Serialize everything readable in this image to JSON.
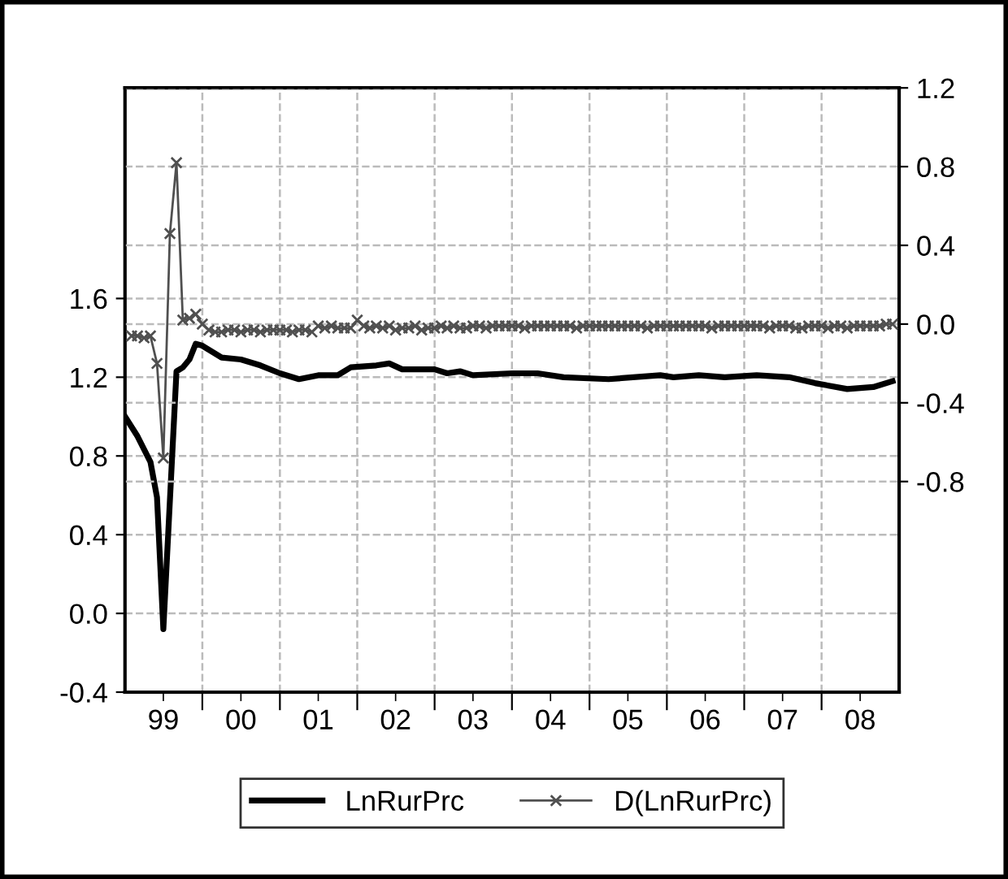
{
  "chart_data": {
    "type": "line",
    "xlim": [
      "1999-01",
      "2009-01"
    ],
    "xticks": [
      {
        "value": "2000-01",
        "label": null
      },
      {
        "value": "2001-01",
        "label": null
      },
      {
        "value": "2002-01",
        "label": null
      },
      {
        "value": "2003-01",
        "label": null
      },
      {
        "value": "2004-01",
        "label": null
      },
      {
        "value": "2005-01",
        "label": null
      },
      {
        "value": "2006-01",
        "label": null
      },
      {
        "value": "2007-01",
        "label": null
      },
      {
        "value": "2008-01",
        "label": null
      },
      {
        "value": "1999-07",
        "label": "99"
      },
      {
        "value": "2000-07",
        "label": "00"
      },
      {
        "value": "2001-07",
        "label": "01"
      },
      {
        "value": "2002-07",
        "label": "02"
      },
      {
        "value": "2003-07",
        "label": "03"
      },
      {
        "value": "2004-07",
        "label": "04"
      },
      {
        "value": "2005-07",
        "label": "05"
      },
      {
        "value": "2006-07",
        "label": "06"
      },
      {
        "value": "2007-07",
        "label": "07"
      },
      {
        "value": "2008-07",
        "label": "08"
      }
    ],
    "ylim": [
      -0.4,
      2.67
    ],
    "yticks": [
      {
        "value": -0.4,
        "label": "-0.4"
      },
      {
        "value": 0.0,
        "label": "0.0"
      },
      {
        "value": 0.4,
        "label": "0.4"
      },
      {
        "value": 0.8,
        "label": "0.8"
      },
      {
        "value": 1.2,
        "label": "1.2"
      },
      {
        "value": 1.6,
        "label": "1.6"
      }
    ],
    "y2lim": [
      -1.87,
      1.2
    ],
    "y2ticks": [
      {
        "value": -0.8,
        "label": "-0.8"
      },
      {
        "value": -0.4,
        "label": "-0.4"
      },
      {
        "value": 0.0,
        "label": "0.0"
      },
      {
        "value": 0.4,
        "label": "0.4"
      },
      {
        "value": 0.8,
        "label": "0.8"
      },
      {
        "value": 1.2,
        "label": "1.2"
      }
    ],
    "grid": true,
    "legend": "bottom",
    "series": [
      {
        "name": "LnRurPrc",
        "color": "#000000",
        "marker": "none",
        "line_style": "solid",
        "x": [
          "1999-01",
          "1999-03",
          "1999-05",
          "1999-06",
          "1999-07",
          "1999-09",
          "1999-10",
          "1999-11",
          "1999-12",
          "2000-01",
          "2000-04",
          "2000-07",
          "2000-10",
          "2001-01",
          "2001-04",
          "2001-07",
          "2001-10",
          "2001-12",
          "2002-04",
          "2002-06",
          "2002-08",
          "2003-01",
          "2003-03",
          "2003-05",
          "2003-07",
          "2004-01",
          "2004-05",
          "2004-09",
          "2005-04",
          "2005-12",
          "2006-02",
          "2006-06",
          "2006-10",
          "2007-03",
          "2007-08",
          "2007-12",
          "2008-05",
          "2008-09",
          "2008-12"
        ],
        "values": [
          1.0,
          0.9,
          0.77,
          0.59,
          -0.08,
          1.23,
          1.25,
          1.29,
          1.37,
          1.36,
          1.3,
          1.29,
          1.26,
          1.22,
          1.19,
          1.21,
          1.21,
          1.25,
          1.26,
          1.27,
          1.24,
          1.24,
          1.22,
          1.23,
          1.21,
          1.22,
          1.22,
          1.2,
          1.19,
          1.21,
          1.2,
          1.21,
          1.2,
          1.21,
          1.2,
          1.17,
          1.14,
          1.15,
          1.18
        ]
      },
      {
        "name": "D(LnRurPrc)",
        "color": "#505050",
        "marker": "cross",
        "line_style": "solid",
        "axis": "y2",
        "x": [
          "1999-02",
          "1999-03",
          "1999-04",
          "1999-05",
          "1999-06",
          "1999-07",
          "1999-08",
          "1999-09",
          "1999-10",
          "1999-11",
          "1999-12",
          "2000-01",
          "2000-02",
          "2000-03",
          "2000-04",
          "2000-05",
          "2000-06",
          "2000-07",
          "2000-08",
          "2000-09",
          "2000-10",
          "2000-11",
          "2000-12",
          "2001-01",
          "2001-02",
          "2001-03",
          "2001-04",
          "2001-05",
          "2001-06",
          "2001-07",
          "2001-08",
          "2001-09",
          "2001-10",
          "2001-11",
          "2001-12",
          "2002-01",
          "2002-02",
          "2002-03",
          "2002-04",
          "2002-05",
          "2002-06",
          "2002-07",
          "2002-08",
          "2002-09",
          "2002-10",
          "2002-11",
          "2002-12",
          "2003-01",
          "2003-02",
          "2003-03",
          "2003-04",
          "2003-05",
          "2003-06",
          "2003-07",
          "2003-08",
          "2003-09",
          "2003-10",
          "2003-11",
          "2003-12",
          "2004-01",
          "2004-02",
          "2004-03",
          "2004-04",
          "2004-05",
          "2004-06",
          "2004-07",
          "2004-08",
          "2004-09",
          "2004-10",
          "2004-11",
          "2004-12",
          "2005-01",
          "2005-02",
          "2005-03",
          "2005-04",
          "2005-05",
          "2005-06",
          "2005-07",
          "2005-08",
          "2005-09",
          "2005-10",
          "2005-11",
          "2005-12",
          "2006-01",
          "2006-02",
          "2006-03",
          "2006-04",
          "2006-05",
          "2006-06",
          "2006-07",
          "2006-08",
          "2006-09",
          "2006-10",
          "2006-11",
          "2006-12",
          "2007-01",
          "2007-02",
          "2007-03",
          "2007-04",
          "2007-05",
          "2007-06",
          "2007-07",
          "2007-08",
          "2007-09",
          "2007-10",
          "2007-11",
          "2007-12",
          "2008-01",
          "2008-02",
          "2008-03",
          "2008-04",
          "2008-05",
          "2008-06",
          "2008-07",
          "2008-08",
          "2008-09",
          "2008-10",
          "2008-11",
          "2008-12"
        ],
        "values": [
          -0.06,
          -0.06,
          -0.07,
          -0.06,
          -0.2,
          -0.68,
          0.46,
          0.82,
          0.02,
          0.03,
          0.05,
          0.0,
          -0.03,
          -0.04,
          -0.04,
          -0.03,
          -0.03,
          -0.04,
          -0.03,
          -0.03,
          -0.04,
          -0.03,
          -0.03,
          -0.03,
          -0.03,
          -0.04,
          -0.03,
          -0.03,
          -0.04,
          -0.01,
          -0.02,
          -0.01,
          -0.02,
          -0.02,
          -0.02,
          0.02,
          -0.01,
          -0.02,
          -0.01,
          -0.02,
          -0.01,
          -0.03,
          -0.02,
          -0.02,
          -0.01,
          -0.03,
          -0.02,
          -0.02,
          -0.01,
          -0.02,
          -0.01,
          -0.02,
          -0.02,
          -0.01,
          -0.01,
          -0.02,
          -0.01,
          -0.01,
          -0.01,
          -0.01,
          -0.01,
          -0.02,
          -0.01,
          -0.01,
          -0.01,
          -0.01,
          -0.01,
          -0.01,
          -0.01,
          -0.02,
          -0.01,
          -0.01,
          -0.01,
          -0.01,
          -0.01,
          -0.01,
          -0.01,
          -0.01,
          -0.01,
          -0.01,
          -0.02,
          -0.01,
          -0.01,
          -0.01,
          -0.01,
          -0.01,
          -0.01,
          -0.01,
          -0.01,
          -0.01,
          -0.02,
          -0.01,
          -0.01,
          -0.01,
          -0.01,
          -0.01,
          -0.01,
          -0.01,
          -0.01,
          -0.02,
          -0.01,
          -0.01,
          -0.01,
          -0.02,
          -0.02,
          -0.01,
          -0.01,
          -0.01,
          -0.02,
          -0.01,
          -0.01,
          -0.02,
          -0.01,
          -0.01,
          -0.01,
          -0.01,
          -0.01,
          0.0,
          0.0
        ]
      }
    ]
  }
}
